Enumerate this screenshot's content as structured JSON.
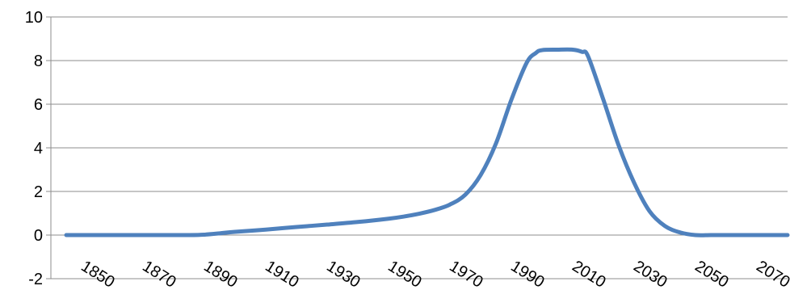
{
  "chart_data": {
    "type": "line",
    "title": "",
    "xlabel": "",
    "ylabel": "",
    "xlim": [
      1840,
      2080
    ],
    "ylim": [
      -2,
      10
    ],
    "y_ticks": [
      -2,
      0,
      2,
      4,
      6,
      8,
      10
    ],
    "y_tick_labels": [
      "-2",
      "0",
      "2",
      "4",
      "6",
      "8",
      "10"
    ],
    "x_ticks": [
      1850,
      1870,
      1890,
      1910,
      1930,
      1950,
      1970,
      1990,
      2010,
      2030,
      2050,
      2070
    ],
    "x_tick_labels": [
      "1850",
      "1870",
      "1890",
      "1910",
      "1930",
      "1950",
      "1970",
      "1990",
      "2010",
      "2030",
      "2050",
      "2070"
    ],
    "grid": true,
    "line_color": "#4F81BD",
    "series": [
      {
        "x": [
          1845,
          1850,
          1860,
          1870,
          1880,
          1885,
          1890,
          1895,
          1900,
          1910,
          1920,
          1930,
          1940,
          1950,
          1955,
          1960,
          1965,
          1970,
          1975,
          1980,
          1985,
          1990,
          1995,
          1998,
          2000,
          2005,
          2010,
          2013,
          2015,
          2020,
          2025,
          2030,
          2035,
          2040,
          2045,
          2050,
          2055,
          2060,
          2070,
          2080
        ],
        "y": [
          0,
          0,
          0,
          0,
          0,
          0,
          0.02,
          0.08,
          0.15,
          0.25,
          0.37,
          0.48,
          0.6,
          0.75,
          0.85,
          0.98,
          1.15,
          1.4,
          1.85,
          2.75,
          4.2,
          6.2,
          7.9,
          8.35,
          8.48,
          8.5,
          8.5,
          8.4,
          8.2,
          6.2,
          4.1,
          2.4,
          1.1,
          0.42,
          0.12,
          0,
          0,
          0,
          0,
          0
        ]
      }
    ]
  }
}
